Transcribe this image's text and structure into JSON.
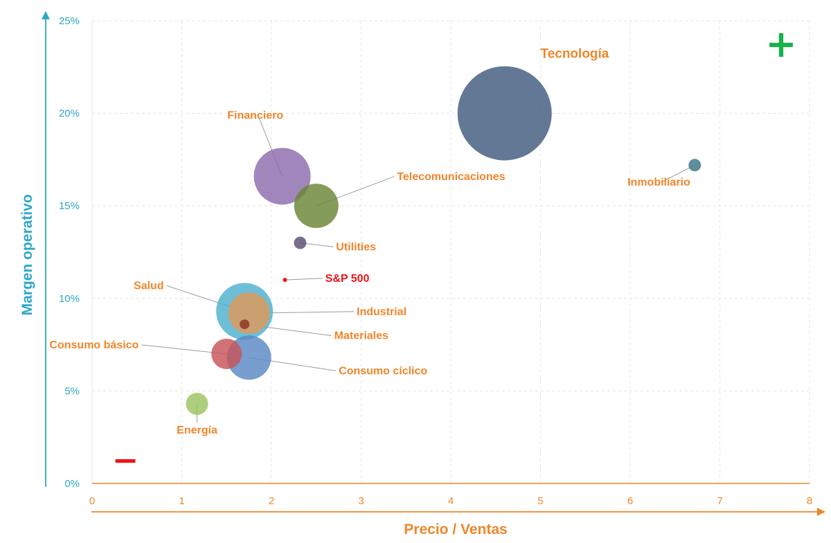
{
  "chart_data": {
    "type": "bubble",
    "xlabel": "Precio / Ventas",
    "ylabel": "Margen operativo",
    "xlim": [
      0,
      8
    ],
    "ylim": [
      0,
      25
    ],
    "x_ticks": [
      "0",
      "1",
      "2",
      "3",
      "4",
      "5",
      "6",
      "7",
      "8"
    ],
    "y_ticks": [
      "0%",
      "5%",
      "10%",
      "15%",
      "20%",
      "25%"
    ],
    "grid": true,
    "symbols": {
      "plus": "+",
      "minus": "−"
    },
    "colors": {
      "x_axis": "#f0862a",
      "y_axis": "#2ea7c6",
      "label": "#f0862a",
      "highlight": "#e8161a",
      "plus": "#17b24a"
    },
    "series": [
      {
        "name": "Tecnología",
        "x": 4.6,
        "y": 20.0,
        "size": 68,
        "color": "#3f5a7e",
        "label_dx": 0.4,
        "label_dy": 3.0
      },
      {
        "name": "Financiero",
        "x": 2.12,
        "y": 16.6,
        "size": 41,
        "color": "#8c6bad",
        "label_dx": -0.3,
        "label_dy": 3.1
      },
      {
        "name": "Telecomunicaciones",
        "x": 2.5,
        "y": 15.0,
        "size": 32,
        "color": "#6a8535",
        "label_dx": 0.9,
        "label_dy": 1.4
      },
      {
        "name": "Inmobiliario",
        "x": 6.72,
        "y": 17.2,
        "size": 9,
        "color": "#3b7686",
        "label_dx": -0.4,
        "label_dy": -1.1
      },
      {
        "name": "Utilities",
        "x": 2.32,
        "y": 13.0,
        "size": 9,
        "color": "#5c4d75",
        "label_dx": 0.4,
        "label_dy": -0.4
      },
      {
        "name": "S&P 500",
        "x": 2.15,
        "y": 11.0,
        "size": 3,
        "color": "#e8161a",
        "label_dx": 0.45,
        "label_dy": -0.1,
        "highlight": true
      },
      {
        "name": "Salud",
        "x": 1.7,
        "y": 9.3,
        "size": 41,
        "color": "#4cb1ce",
        "label_dx": -0.9,
        "label_dy": 1.2
      },
      {
        "name": "Industrial",
        "x": 1.75,
        "y": 9.2,
        "size": 30,
        "color": "#e0985a",
        "label_dx": 1.2,
        "label_dy": -0.1
      },
      {
        "name": "Materiales",
        "x": 1.7,
        "y": 8.6,
        "size": 7,
        "color": "#8b3225",
        "label_dx": 1.0,
        "label_dy": -0.8
      },
      {
        "name": "Consumo cíclico",
        "x": 1.75,
        "y": 6.8,
        "size": 32,
        "color": "#5a87c4",
        "label_dx": 1.0,
        "label_dy": -0.9
      },
      {
        "name": "Consumo básico",
        "x": 1.5,
        "y": 7.0,
        "size": 22,
        "color": "#c75458",
        "label_dx": -0.98,
        "label_dy": 0.3
      },
      {
        "name": "Energía",
        "x": 1.17,
        "y": 4.3,
        "size": 16,
        "color": "#9dc35e",
        "label_dx": 0.0,
        "label_dy": -1.6
      }
    ]
  }
}
